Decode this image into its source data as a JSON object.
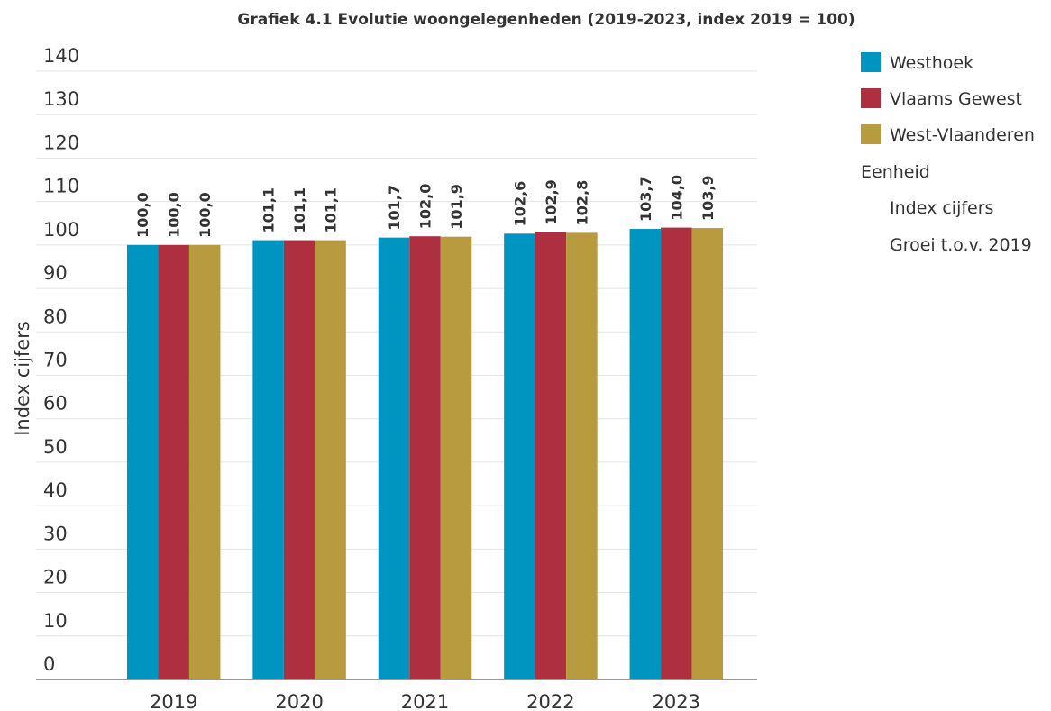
{
  "chart_data": {
    "type": "bar",
    "title": "Grafiek 4.1 Evolutie woongelegenheden (2019-2023, index 2019 = 100)",
    "y_label": "Index cijfers",
    "categories": [
      "2019",
      "2020",
      "2021",
      "2022",
      "2023"
    ],
    "series": [
      {
        "name": "Westhoek",
        "color": "#0094c1",
        "values": [
          100.0,
          101.1,
          101.7,
          102.6,
          103.7
        ],
        "value_labels": [
          "100,0",
          "101,1",
          "101,7",
          "102,6",
          "103,7"
        ]
      },
      {
        "name": "Vlaams Gewest",
        "color": "#ae2f3f",
        "values": [
          100.0,
          101.1,
          102.0,
          102.9,
          104.0
        ],
        "value_labels": [
          "100,0",
          "101,1",
          "102,0",
          "102,9",
          "104,0"
        ]
      },
      {
        "name": "West-Vlaanderen",
        "color": "#b79b3e",
        "values": [
          100.0,
          101.1,
          101.9,
          102.8,
          103.9
        ],
        "value_labels": [
          "100,0",
          "101,1",
          "101,9",
          "102,8",
          "103,9"
        ]
      }
    ],
    "ylim": [
      0,
      140
    ],
    "yticks": [
      0,
      10,
      20,
      30,
      40,
      50,
      60,
      70,
      80,
      90,
      100,
      110,
      120,
      130,
      140
    ],
    "grid": true,
    "legend_position": "right",
    "legend_title": "Eenheid",
    "unit_options": [
      "Index cijfers",
      "Groei t.o.v. 2019"
    ]
  }
}
